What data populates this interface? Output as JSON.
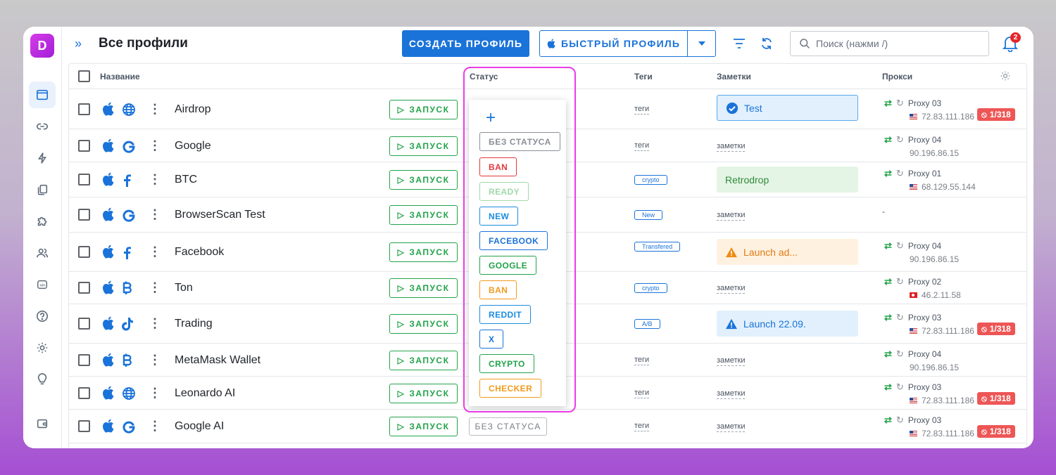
{
  "header": {
    "title": "Все профили",
    "create_label": "СОЗДАТЬ ПРОФИЛЬ",
    "quick_label": "БЫСТРЫЙ ПРОФИЛЬ",
    "search_placeholder": "Поиск (нажми /)",
    "notifications_count": "2"
  },
  "columns": {
    "name": "Название",
    "status": "Статус",
    "tags": "Теги",
    "notes": "Заметки",
    "proxy": "Прокси"
  },
  "launch_label": "ЗАПУСК",
  "status_dropdown": {
    "options": [
      {
        "label": "БЕЗ СТАТУСА",
        "color": "#8a8f96"
      },
      {
        "label": "BAN",
        "color": "#e0393e"
      },
      {
        "label": "READY",
        "color": "#9fd9a8"
      },
      {
        "label": "NEW",
        "color": "#1a8ce0"
      },
      {
        "label": "FACEBOOK",
        "color": "#1a73d9"
      },
      {
        "label": "GOOGLE",
        "color": "#23a34a"
      },
      {
        "label": "BAN",
        "color": "#f29a1c"
      },
      {
        "label": "REDDIT",
        "color": "#1a8ce0"
      },
      {
        "label": "X",
        "color": "#1a73d9"
      },
      {
        "label": "CRYPTO",
        "color": "#23a34a"
      },
      {
        "label": "CHECKER",
        "color": "#f29a1c"
      }
    ]
  },
  "rows": [
    {
      "name": "Airdrop",
      "browser": "globe-icon",
      "tag": "теги",
      "tag_type": "link",
      "note": "Test",
      "note_type": "blue-check",
      "proxy_name": "Proxy 03",
      "proxy_ip": "72.83.111.186",
      "flag": "us",
      "limit": "1/318"
    },
    {
      "name": "Google",
      "browser": "google-icon",
      "tag": "теги",
      "tag_type": "link",
      "note": "заметки",
      "note_type": "link",
      "proxy_name": "Proxy 04",
      "proxy_ip": "90.196.86.15",
      "flag": "",
      "limit": ""
    },
    {
      "name": "BTC",
      "browser": "facebook-icon",
      "tag": "crypto",
      "tag_type": "chip",
      "note": "Retrodrop",
      "note_type": "green",
      "proxy_name": "Proxy 01",
      "proxy_ip": "68.129.55.144",
      "flag": "us",
      "limit": ""
    },
    {
      "name": "BrowserScan Test",
      "browser": "google-icon",
      "tag": "New",
      "tag_type": "chip",
      "note": "заметки",
      "note_type": "link",
      "proxy_name": "",
      "proxy_ip": "",
      "flag": "",
      "limit": "",
      "proxy_dash": "-"
    },
    {
      "name": "Facebook",
      "browser": "facebook-icon",
      "tag": "Transfered",
      "tag_type": "chip",
      "note": "Launch ad...",
      "note_type": "orange",
      "proxy_name": "Proxy 04",
      "proxy_ip": "90.196.86.15",
      "flag": "",
      "limit": ""
    },
    {
      "name": "Ton",
      "browser": "bitcoin-icon",
      "tag": "crypto",
      "tag_type": "chip",
      "note": "заметки",
      "note_type": "link",
      "proxy_name": "Proxy 02",
      "proxy_ip": "46.2.11.58",
      "flag": "tr",
      "limit": ""
    },
    {
      "name": "Trading",
      "browser": "tiktok-icon",
      "tag": "A/B",
      "tag_type": "chip",
      "note": "Launch 22.09.",
      "note_type": "blue-warn",
      "proxy_name": "Proxy 03",
      "proxy_ip": "72.83.111.186",
      "flag": "us",
      "limit": "1/318"
    },
    {
      "name": "MetaMask Wallet",
      "browser": "bitcoin-icon",
      "tag": "теги",
      "tag_type": "link",
      "note": "заметки",
      "note_type": "link",
      "proxy_name": "Proxy 04",
      "proxy_ip": "90.196.86.15",
      "flag": "",
      "limit": ""
    },
    {
      "name": "Leonardo AI",
      "browser": "globe-icon",
      "tag": "теги",
      "tag_type": "link",
      "note": "заметки",
      "note_type": "link",
      "proxy_name": "Proxy 03",
      "proxy_ip": "72.83.111.186",
      "flag": "us",
      "limit": "1/318"
    },
    {
      "name": "Google AI",
      "browser": "google-icon",
      "tag": "теги",
      "tag_type": "link",
      "note": "заметки",
      "note_type": "link",
      "proxy_name": "Proxy 03",
      "proxy_ip": "72.83.111.186",
      "flag": "us",
      "limit": "1/318",
      "status": "БЕЗ СТАТУСА"
    }
  ],
  "colors": {
    "accent": "#1a73d9",
    "launch": "#23a34a",
    "highlight": "#e93ce8",
    "limit": "#ee5656"
  }
}
